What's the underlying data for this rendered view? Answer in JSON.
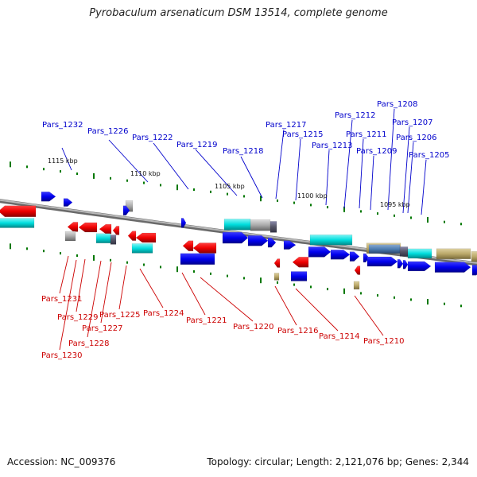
{
  "title": "Pyrobaculum arsenaticum DSM 13514, complete genome",
  "footer": {
    "accession": "Accession: NC_009376",
    "topology": "Topology: circular; Length: 2,121,076 bp; Genes: 2,344"
  },
  "colors": {
    "forward_cds": "#0000ee",
    "reverse_cds": "#ee0000",
    "rna_feature": "#00dddd",
    "pseudogene": "#aaaaaa",
    "other_feature": "#bba96a",
    "dark_grey": "#555566",
    "label_forward": "#0000cc",
    "label_reverse": "#cc0000",
    "backbone": "#888888",
    "ticks": "#007700"
  },
  "scale_labels": [
    "1115 kbp",
    "1110 kbp",
    "1105 kbp",
    "1100 kbp",
    "1095 kbp"
  ],
  "top_labels": [
    "Pars_1232",
    "Pars_1226",
    "Pars_1222",
    "Pars_1219",
    "Pars_1218",
    "Pars_1217",
    "Pars_1215",
    "Pars_1213",
    "Pars_1212",
    "Pars_1211",
    "Pars_1209",
    "Pars_1208",
    "Pars_1207",
    "Pars_1206",
    "Pars_1205"
  ],
  "bottom_labels": [
    "Pars_1231",
    "Pars_1230",
    "Pars_1229",
    "Pars_1228",
    "Pars_1227",
    "Pars_1225",
    "Pars_1224",
    "Pars_1221",
    "Pars_1220",
    "Pars_1216",
    "Pars_1214",
    "Pars_1210"
  ]
}
